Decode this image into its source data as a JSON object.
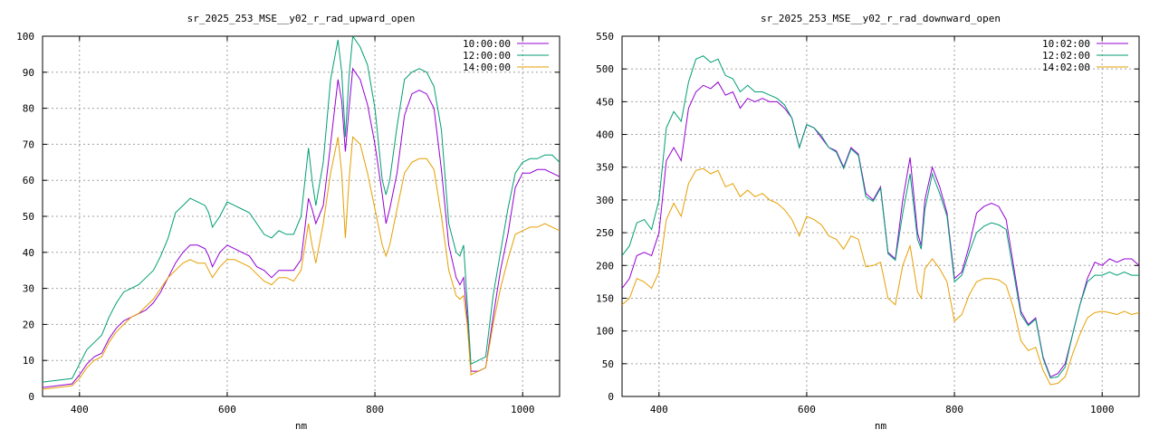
{
  "chart_data": [
    {
      "type": "line",
      "title": "sr_2025_253_MSE__y02_r_rad_upward_open",
      "xlabel": "nm",
      "ylabel": "",
      "xlim": [
        350,
        1050
      ],
      "ylim": [
        0,
        100
      ],
      "xticks": [
        400,
        600,
        800,
        1000
      ],
      "yticks": [
        0,
        10,
        20,
        30,
        40,
        50,
        60,
        70,
        80,
        90,
        100
      ],
      "grid": true,
      "legend_position": "top-right",
      "series": [
        {
          "name": "10:00:00",
          "color": "#9400d3",
          "x": [
            350,
            370,
            390,
            400,
            410,
            420,
            430,
            440,
            450,
            460,
            470,
            480,
            490,
            500,
            510,
            520,
            530,
            540,
            550,
            560,
            570,
            575,
            580,
            590,
            600,
            610,
            620,
            630,
            640,
            650,
            660,
            670,
            680,
            690,
            700,
            710,
            715,
            720,
            730,
            740,
            750,
            755,
            760,
            765,
            770,
            780,
            790,
            800,
            810,
            815,
            820,
            830,
            840,
            850,
            860,
            870,
            880,
            890,
            900,
            910,
            915,
            920,
            925,
            930,
            940,
            950,
            960,
            970,
            980,
            990,
            1000,
            1010,
            1020,
            1030,
            1040,
            1050
          ],
          "y": [
            2.5,
            3,
            3.5,
            6,
            9,
            11,
            12,
            16,
            19,
            21,
            22,
            23,
            24,
            26,
            29,
            33,
            37,
            40,
            42,
            42,
            41,
            39,
            36,
            40,
            42,
            41,
            40,
            39,
            36,
            35,
            33,
            35,
            35,
            35,
            38,
            55,
            52,
            48,
            53,
            70,
            88,
            82,
            68,
            80,
            91,
            88,
            81,
            70,
            56,
            48,
            52,
            62,
            78,
            84,
            85,
            84,
            80,
            63,
            42,
            33,
            31,
            33,
            22,
            7,
            7,
            8,
            22,
            35,
            45,
            58,
            62,
            62,
            63,
            63,
            62,
            61
          ]
        },
        {
          "name": "12:00:00",
          "color": "#009e73",
          "x": [
            350,
            370,
            390,
            400,
            410,
            420,
            430,
            440,
            450,
            460,
            470,
            480,
            490,
            500,
            510,
            520,
            530,
            540,
            550,
            560,
            570,
            575,
            580,
            590,
            600,
            610,
            620,
            630,
            640,
            650,
            660,
            670,
            680,
            690,
            700,
            710,
            715,
            720,
            730,
            740,
            750,
            755,
            760,
            765,
            770,
            780,
            790,
            800,
            810,
            815,
            820,
            830,
            840,
            850,
            860,
            870,
            880,
            890,
            900,
            910,
            915,
            920,
            925,
            930,
            940,
            950,
            960,
            970,
            980,
            990,
            1000,
            1010,
            1020,
            1030,
            1040,
            1050
          ],
          "y": [
            4,
            4.5,
            5,
            9,
            13,
            15,
            17,
            22,
            26,
            29,
            30,
            31,
            33,
            35,
            39,
            44,
            51,
            53,
            55,
            54,
            53,
            51,
            47,
            50,
            54,
            53,
            52,
            51,
            48,
            45,
            44,
            46,
            45,
            45,
            50,
            69,
            60,
            53,
            65,
            88,
            99,
            90,
            72,
            89,
            100,
            97,
            92,
            80,
            60,
            56,
            60,
            75,
            88,
            90,
            91,
            90,
            86,
            74,
            48,
            40,
            39,
            42,
            26,
            9,
            10,
            11,
            28,
            40,
            52,
            62,
            65,
            66,
            66,
            67,
            67,
            65
          ]
        },
        {
          "name": "14:00:00",
          "color": "#e69f00",
          "x": [
            350,
            370,
            390,
            400,
            410,
            420,
            430,
            440,
            450,
            460,
            470,
            480,
            490,
            500,
            510,
            520,
            530,
            540,
            550,
            560,
            570,
            575,
            580,
            590,
            600,
            610,
            620,
            630,
            640,
            650,
            660,
            670,
            680,
            690,
            700,
            710,
            715,
            720,
            730,
            740,
            750,
            755,
            760,
            765,
            770,
            780,
            790,
            800,
            810,
            815,
            820,
            830,
            840,
            850,
            860,
            870,
            880,
            890,
            900,
            910,
            915,
            920,
            925,
            930,
            940,
            950,
            960,
            970,
            980,
            990,
            1000,
            1010,
            1020,
            1030,
            1040,
            1050
          ],
          "y": [
            2,
            2.5,
            3,
            5,
            8,
            10,
            11,
            15,
            18,
            20,
            22,
            23,
            25,
            27,
            30,
            33,
            35,
            37,
            38,
            37,
            37,
            35,
            33,
            36,
            38,
            38,
            37,
            36,
            34,
            32,
            31,
            33,
            33,
            32,
            35,
            48,
            42,
            37,
            48,
            62,
            72,
            62,
            44,
            60,
            72,
            70,
            62,
            52,
            42,
            39,
            42,
            52,
            62,
            65,
            66,
            66,
            63,
            50,
            35,
            28,
            27,
            28,
            20,
            6,
            7,
            8,
            20,
            30,
            38,
            45,
            46,
            47,
            47,
            48,
            47,
            46
          ]
        }
      ]
    },
    {
      "type": "line",
      "title": "sr_2025_253_MSE__y02_r_rad_downward_open",
      "xlabel": "nm",
      "ylabel": "",
      "xlim": [
        350,
        1050
      ],
      "ylim": [
        0,
        550
      ],
      "xticks": [
        400,
        600,
        800,
        1000
      ],
      "yticks": [
        0,
        50,
        100,
        150,
        200,
        250,
        300,
        350,
        400,
        450,
        500,
        550
      ],
      "grid": true,
      "legend_position": "top-right",
      "series": [
        {
          "name": "10:02:00",
          "color": "#9400d3",
          "x": [
            350,
            360,
            370,
            380,
            390,
            400,
            410,
            420,
            430,
            440,
            450,
            460,
            470,
            480,
            490,
            500,
            510,
            520,
            530,
            540,
            550,
            560,
            570,
            580,
            590,
            600,
            610,
            620,
            630,
            640,
            650,
            660,
            670,
            680,
            690,
            700,
            710,
            720,
            730,
            740,
            750,
            755,
            760,
            770,
            780,
            790,
            800,
            810,
            820,
            830,
            840,
            850,
            860,
            870,
            880,
            890,
            900,
            910,
            920,
            930,
            940,
            950,
            960,
            970,
            980,
            990,
            1000,
            1010,
            1020,
            1030,
            1040,
            1050
          ],
          "y": [
            165,
            180,
            215,
            220,
            215,
            250,
            360,
            380,
            360,
            440,
            465,
            475,
            470,
            480,
            460,
            465,
            440,
            455,
            450,
            455,
            450,
            450,
            440,
            425,
            380,
            415,
            410,
            395,
            380,
            375,
            350,
            380,
            370,
            310,
            300,
            320,
            220,
            210,
            300,
            365,
            250,
            230,
            300,
            350,
            320,
            280,
            180,
            190,
            230,
            280,
            290,
            295,
            290,
            270,
            200,
            130,
            110,
            120,
            60,
            30,
            35,
            50,
            95,
            140,
            180,
            205,
            200,
            210,
            205,
            210,
            210,
            200
          ]
        },
        {
          "name": "12:02:00",
          "color": "#009e73",
          "x": [
            350,
            360,
            370,
            380,
            390,
            400,
            410,
            420,
            430,
            440,
            450,
            460,
            470,
            480,
            490,
            500,
            510,
            520,
            530,
            540,
            550,
            560,
            570,
            580,
            590,
            600,
            610,
            620,
            630,
            640,
            650,
            660,
            670,
            680,
            690,
            700,
            710,
            720,
            730,
            740,
            750,
            755,
            760,
            770,
            780,
            790,
            800,
            810,
            820,
            830,
            840,
            850,
            860,
            870,
            880,
            890,
            900,
            910,
            920,
            930,
            940,
            950,
            960,
            970,
            980,
            990,
            1000,
            1010,
            1020,
            1030,
            1040,
            1050
          ],
          "y": [
            215,
            230,
            265,
            270,
            255,
            300,
            410,
            435,
            420,
            480,
            515,
            520,
            510,
            515,
            490,
            485,
            465,
            475,
            465,
            465,
            460,
            455,
            445,
            425,
            380,
            415,
            410,
            398,
            380,
            373,
            348,
            378,
            368,
            305,
            298,
            318,
            218,
            208,
            280,
            340,
            240,
            225,
            285,
            340,
            310,
            275,
            175,
            185,
            220,
            250,
            260,
            265,
            262,
            255,
            190,
            125,
            108,
            118,
            58,
            28,
            30,
            45,
            95,
            140,
            175,
            185,
            185,
            190,
            185,
            190,
            185,
            185
          ]
        },
        {
          "name": "14:02:00",
          "color": "#e69f00",
          "x": [
            350,
            360,
            370,
            380,
            390,
            400,
            410,
            420,
            430,
            440,
            450,
            460,
            470,
            480,
            490,
            500,
            510,
            520,
            530,
            540,
            550,
            560,
            570,
            580,
            590,
            600,
            610,
            620,
            630,
            640,
            650,
            660,
            670,
            680,
            690,
            700,
            710,
            720,
            730,
            740,
            750,
            755,
            760,
            770,
            780,
            790,
            800,
            810,
            820,
            830,
            840,
            850,
            860,
            870,
            880,
            890,
            900,
            910,
            920,
            930,
            940,
            950,
            960,
            970,
            980,
            990,
            1000,
            1010,
            1020,
            1030,
            1040,
            1050
          ],
          "y": [
            140,
            150,
            180,
            175,
            165,
            190,
            270,
            295,
            275,
            325,
            345,
            348,
            340,
            345,
            320,
            325,
            305,
            315,
            305,
            310,
            300,
            295,
            285,
            270,
            245,
            275,
            270,
            262,
            245,
            240,
            225,
            245,
            240,
            198,
            200,
            205,
            150,
            140,
            200,
            230,
            160,
            150,
            195,
            210,
            195,
            175,
            115,
            125,
            155,
            175,
            180,
            180,
            178,
            170,
            135,
            85,
            70,
            75,
            40,
            18,
            20,
            30,
            65,
            95,
            120,
            128,
            130,
            128,
            125,
            130,
            125,
            128
          ]
        }
      ]
    }
  ]
}
